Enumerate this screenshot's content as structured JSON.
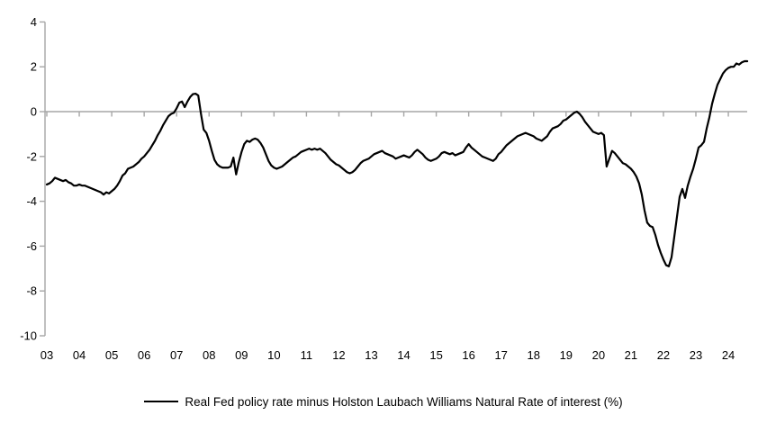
{
  "chart_data": {
    "type": "line",
    "title": "",
    "xlabel": "",
    "ylabel": "",
    "grid": "zero-gridline-only",
    "legend_position": "bottom-center",
    "axis_color": "#a6a6a6",
    "label_color": "#000000",
    "ylim": [
      -10,
      4
    ],
    "y_ticks": [
      4,
      2,
      0,
      -2,
      -4,
      -6,
      -8,
      -10
    ],
    "y_tick_labels": [
      "4",
      "2",
      "0",
      "-2",
      "-4",
      "-6",
      "-8",
      "-10"
    ],
    "x_tick_labels": [
      "03",
      "04",
      "05",
      "06",
      "07",
      "08",
      "09",
      "10",
      "11",
      "12",
      "13",
      "14",
      "15",
      "16",
      "17",
      "18",
      "19",
      "20",
      "21",
      "22",
      "23",
      "24"
    ],
    "x_start_year": 2003,
    "frequency": "monthly",
    "series": [
      {
        "name": "Real Fed policy rate minus Holston Laubach Williams Natural Rate of interest (%)",
        "color": "#000000",
        "values": [
          -3.25,
          -3.2,
          -3.1,
          -2.95,
          -3.0,
          -3.05,
          -3.1,
          -3.05,
          -3.15,
          -3.2,
          -3.3,
          -3.3,
          -3.25,
          -3.3,
          -3.3,
          -3.35,
          -3.4,
          -3.45,
          -3.5,
          -3.55,
          -3.6,
          -3.7,
          -3.6,
          -3.65,
          -3.55,
          -3.45,
          -3.3,
          -3.1,
          -2.85,
          -2.75,
          -2.55,
          -2.5,
          -2.45,
          -2.35,
          -2.25,
          -2.1,
          -2.0,
          -1.85,
          -1.7,
          -1.5,
          -1.3,
          -1.05,
          -0.85,
          -0.6,
          -0.4,
          -0.2,
          -0.1,
          -0.05,
          0.15,
          0.4,
          0.45,
          0.2,
          0.45,
          0.65,
          0.78,
          0.8,
          0.72,
          -0.1,
          -0.8,
          -0.95,
          -1.3,
          -1.75,
          -2.15,
          -2.35,
          -2.45,
          -2.5,
          -2.5,
          -2.5,
          -2.45,
          -2.05,
          -2.8,
          -2.25,
          -1.8,
          -1.45,
          -1.3,
          -1.35,
          -1.25,
          -1.2,
          -1.25,
          -1.4,
          -1.6,
          -1.9,
          -2.2,
          -2.4,
          -2.5,
          -2.55,
          -2.5,
          -2.45,
          -2.35,
          -2.25,
          -2.15,
          -2.05,
          -2.0,
          -1.9,
          -1.8,
          -1.75,
          -1.7,
          -1.65,
          -1.7,
          -1.65,
          -1.7,
          -1.65,
          -1.75,
          -1.85,
          -2.0,
          -2.15,
          -2.25,
          -2.35,
          -2.4,
          -2.5,
          -2.6,
          -2.7,
          -2.75,
          -2.7,
          -2.6,
          -2.45,
          -2.3,
          -2.2,
          -2.15,
          -2.1,
          -2.0,
          -1.9,
          -1.85,
          -1.8,
          -1.75,
          -1.85,
          -1.9,
          -1.95,
          -2.0,
          -2.1,
          -2.05,
          -2.0,
          -1.95,
          -2.0,
          -2.05,
          -1.95,
          -1.8,
          -1.7,
          -1.8,
          -1.9,
          -2.05,
          -2.15,
          -2.2,
          -2.15,
          -2.1,
          -2.0,
          -1.85,
          -1.8,
          -1.85,
          -1.9,
          -1.85,
          -1.95,
          -1.9,
          -1.85,
          -1.8,
          -1.6,
          -1.45,
          -1.6,
          -1.7,
          -1.8,
          -1.9,
          -2.0,
          -2.05,
          -2.1,
          -2.15,
          -2.2,
          -2.1,
          -1.9,
          -1.8,
          -1.65,
          -1.5,
          -1.4,
          -1.3,
          -1.2,
          -1.1,
          -1.05,
          -1.0,
          -0.95,
          -1.0,
          -1.05,
          -1.1,
          -1.2,
          -1.25,
          -1.3,
          -1.2,
          -1.1,
          -0.9,
          -0.75,
          -0.7,
          -0.65,
          -0.55,
          -0.4,
          -0.35,
          -0.25,
          -0.15,
          -0.05,
          0.0,
          -0.1,
          -0.25,
          -0.45,
          -0.6,
          -0.75,
          -0.9,
          -0.95,
          -1.0,
          -0.95,
          -1.05,
          -2.45,
          -2.1,
          -1.75,
          -1.85,
          -2.0,
          -2.15,
          -2.3,
          -2.35,
          -2.45,
          -2.55,
          -2.7,
          -2.9,
          -3.2,
          -3.7,
          -4.4,
          -4.95,
          -5.1,
          -5.15,
          -5.5,
          -5.95,
          -6.3,
          -6.6,
          -6.85,
          -6.9,
          -6.5,
          -5.6,
          -4.7,
          -3.8,
          -3.45,
          -3.85,
          -3.3,
          -2.9,
          -2.55,
          -2.1,
          -1.6,
          -1.5,
          -1.35,
          -0.75,
          -0.25,
          0.35,
          0.8,
          1.2,
          1.45,
          1.7,
          1.85,
          1.95,
          2.0,
          2.0,
          2.15,
          2.1,
          2.2,
          2.25,
          2.25
        ]
      }
    ]
  }
}
